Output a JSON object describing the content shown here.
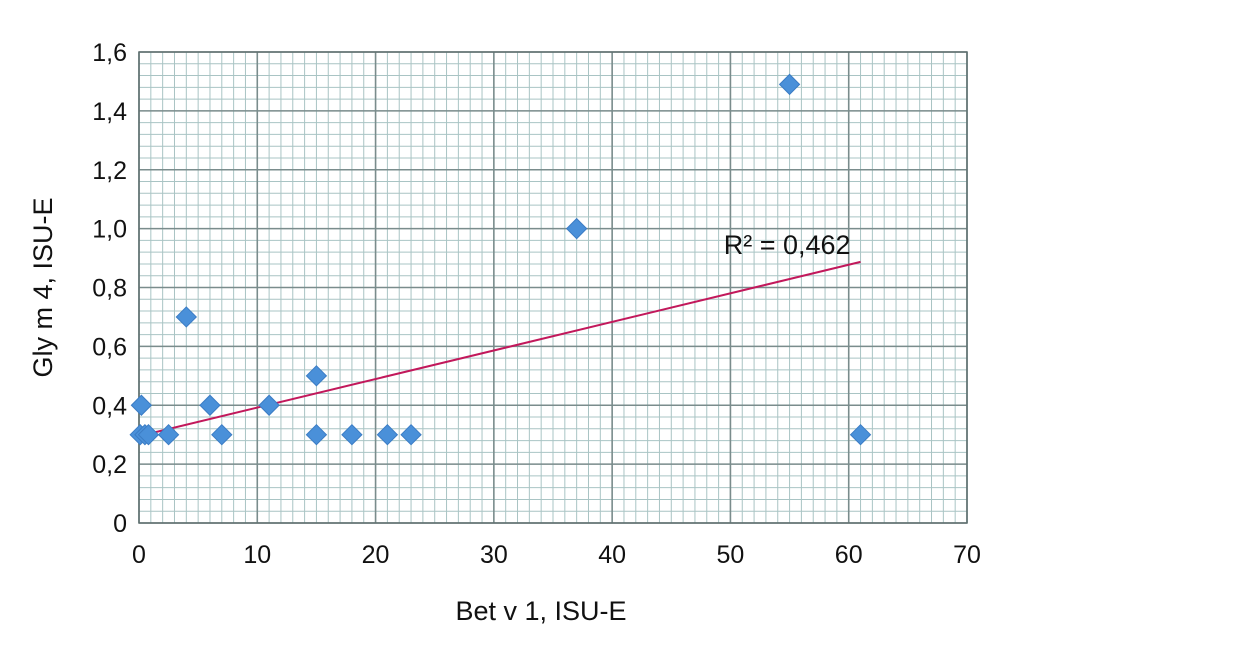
{
  "chart_data": {
    "type": "scatter",
    "xlabel": "Bet v 1, ISU-E",
    "ylabel": "Gly m 4, ISU-E",
    "xlim": [
      0,
      70
    ],
    "ylim": [
      0,
      1.6
    ],
    "x_ticks": [
      0,
      10,
      20,
      30,
      40,
      50,
      60,
      70
    ],
    "y_ticks": [
      0,
      0.2,
      0.4,
      0.6,
      0.8,
      1.0,
      1.2,
      1.4,
      1.6
    ],
    "x_tick_labels": [
      "0",
      "10",
      "20",
      "30",
      "40",
      "50",
      "60",
      "70"
    ],
    "y_tick_labels": [
      "0",
      "0,2",
      "0,4",
      "0,6",
      "0,8",
      "1,0",
      "1,2",
      "1,4",
      "1,6"
    ],
    "grid": true,
    "points": [
      {
        "x": 0.1,
        "y": 0.3
      },
      {
        "x": 0.2,
        "y": 0.4
      },
      {
        "x": 0.5,
        "y": 0.3
      },
      {
        "x": 0.8,
        "y": 0.3
      },
      {
        "x": 2.5,
        "y": 0.3
      },
      {
        "x": 4,
        "y": 0.7
      },
      {
        "x": 6,
        "y": 0.4
      },
      {
        "x": 7,
        "y": 0.3
      },
      {
        "x": 11,
        "y": 0.4
      },
      {
        "x": 15,
        "y": 0.5
      },
      {
        "x": 15,
        "y": 0.3
      },
      {
        "x": 18,
        "y": 0.3
      },
      {
        "x": 21,
        "y": 0.3
      },
      {
        "x": 23,
        "y": 0.3
      },
      {
        "x": 37,
        "y": 1.0
      },
      {
        "x": 55,
        "y": 1.49
      },
      {
        "x": 61,
        "y": 0.3
      }
    ],
    "trendline": {
      "type": "linear",
      "x_start": 0,
      "y_start": 0.295,
      "x_end": 61,
      "y_end": 0.887,
      "label": "R² = 0,462"
    },
    "colors": {
      "marker": "#4a90d9",
      "trendline": "#c2185b",
      "major_grid": "#7a8c8c",
      "minor_grid": "#a9c4c4"
    }
  }
}
